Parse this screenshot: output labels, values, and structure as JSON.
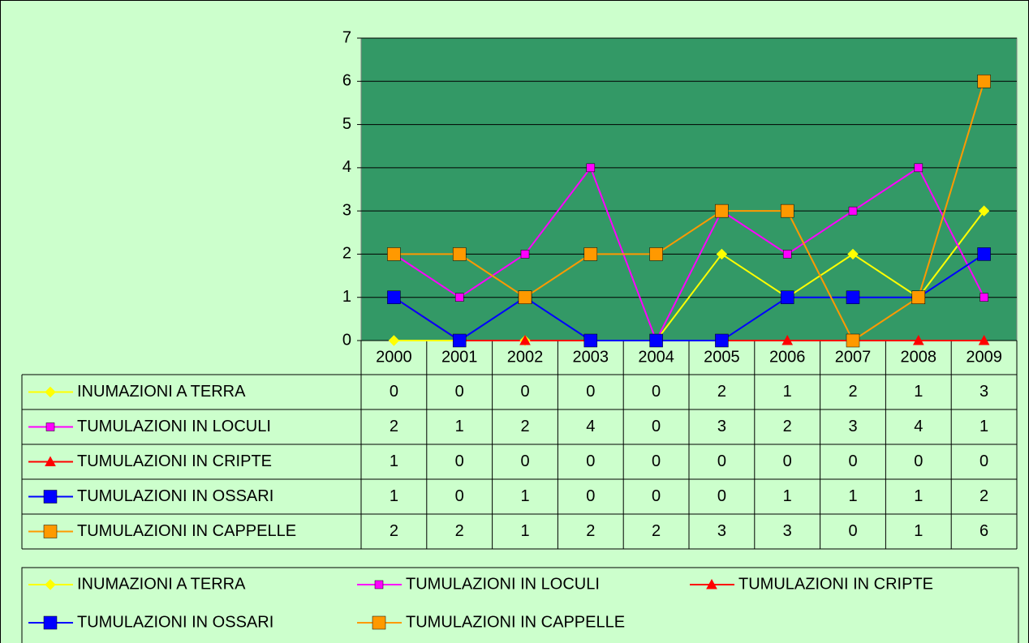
{
  "chart_data": {
    "type": "line",
    "categories": [
      "2000",
      "2001",
      "2002",
      "2003",
      "2004",
      "2005",
      "2006",
      "2007",
      "2008",
      "2009"
    ],
    "series": [
      {
        "name": "INUMAZIONI A TERRA",
        "color": "#ffff00",
        "marker": "diamond",
        "values": [
          0,
          0,
          0,
          0,
          0,
          2,
          1,
          2,
          1,
          3
        ]
      },
      {
        "name": "TUMULAZIONI IN LOCULI",
        "color": "#ff00ff",
        "marker": "small-square",
        "values": [
          2,
          1,
          2,
          4,
          0,
          3,
          2,
          3,
          4,
          1
        ]
      },
      {
        "name": "TUMULAZIONI IN CRIPTE",
        "color": "#ff0000",
        "marker": "triangle",
        "values": [
          1,
          0,
          0,
          0,
          0,
          0,
          0,
          0,
          0,
          0
        ]
      },
      {
        "name": "TUMULAZIONI IN OSSARI",
        "color": "#0000ff",
        "marker": "square",
        "values": [
          1,
          0,
          1,
          0,
          0,
          0,
          1,
          1,
          1,
          2
        ]
      },
      {
        "name": "TUMULAZIONI IN CAPPELLE",
        "color": "#ff9900",
        "marker": "square",
        "values": [
          2,
          2,
          1,
          2,
          2,
          3,
          3,
          0,
          1,
          6
        ]
      }
    ],
    "ylim": [
      0,
      7
    ],
    "yticks": [
      0,
      1,
      2,
      3,
      4,
      5,
      6,
      7
    ],
    "grid": true,
    "legend": "bottom",
    "data_table": true
  }
}
